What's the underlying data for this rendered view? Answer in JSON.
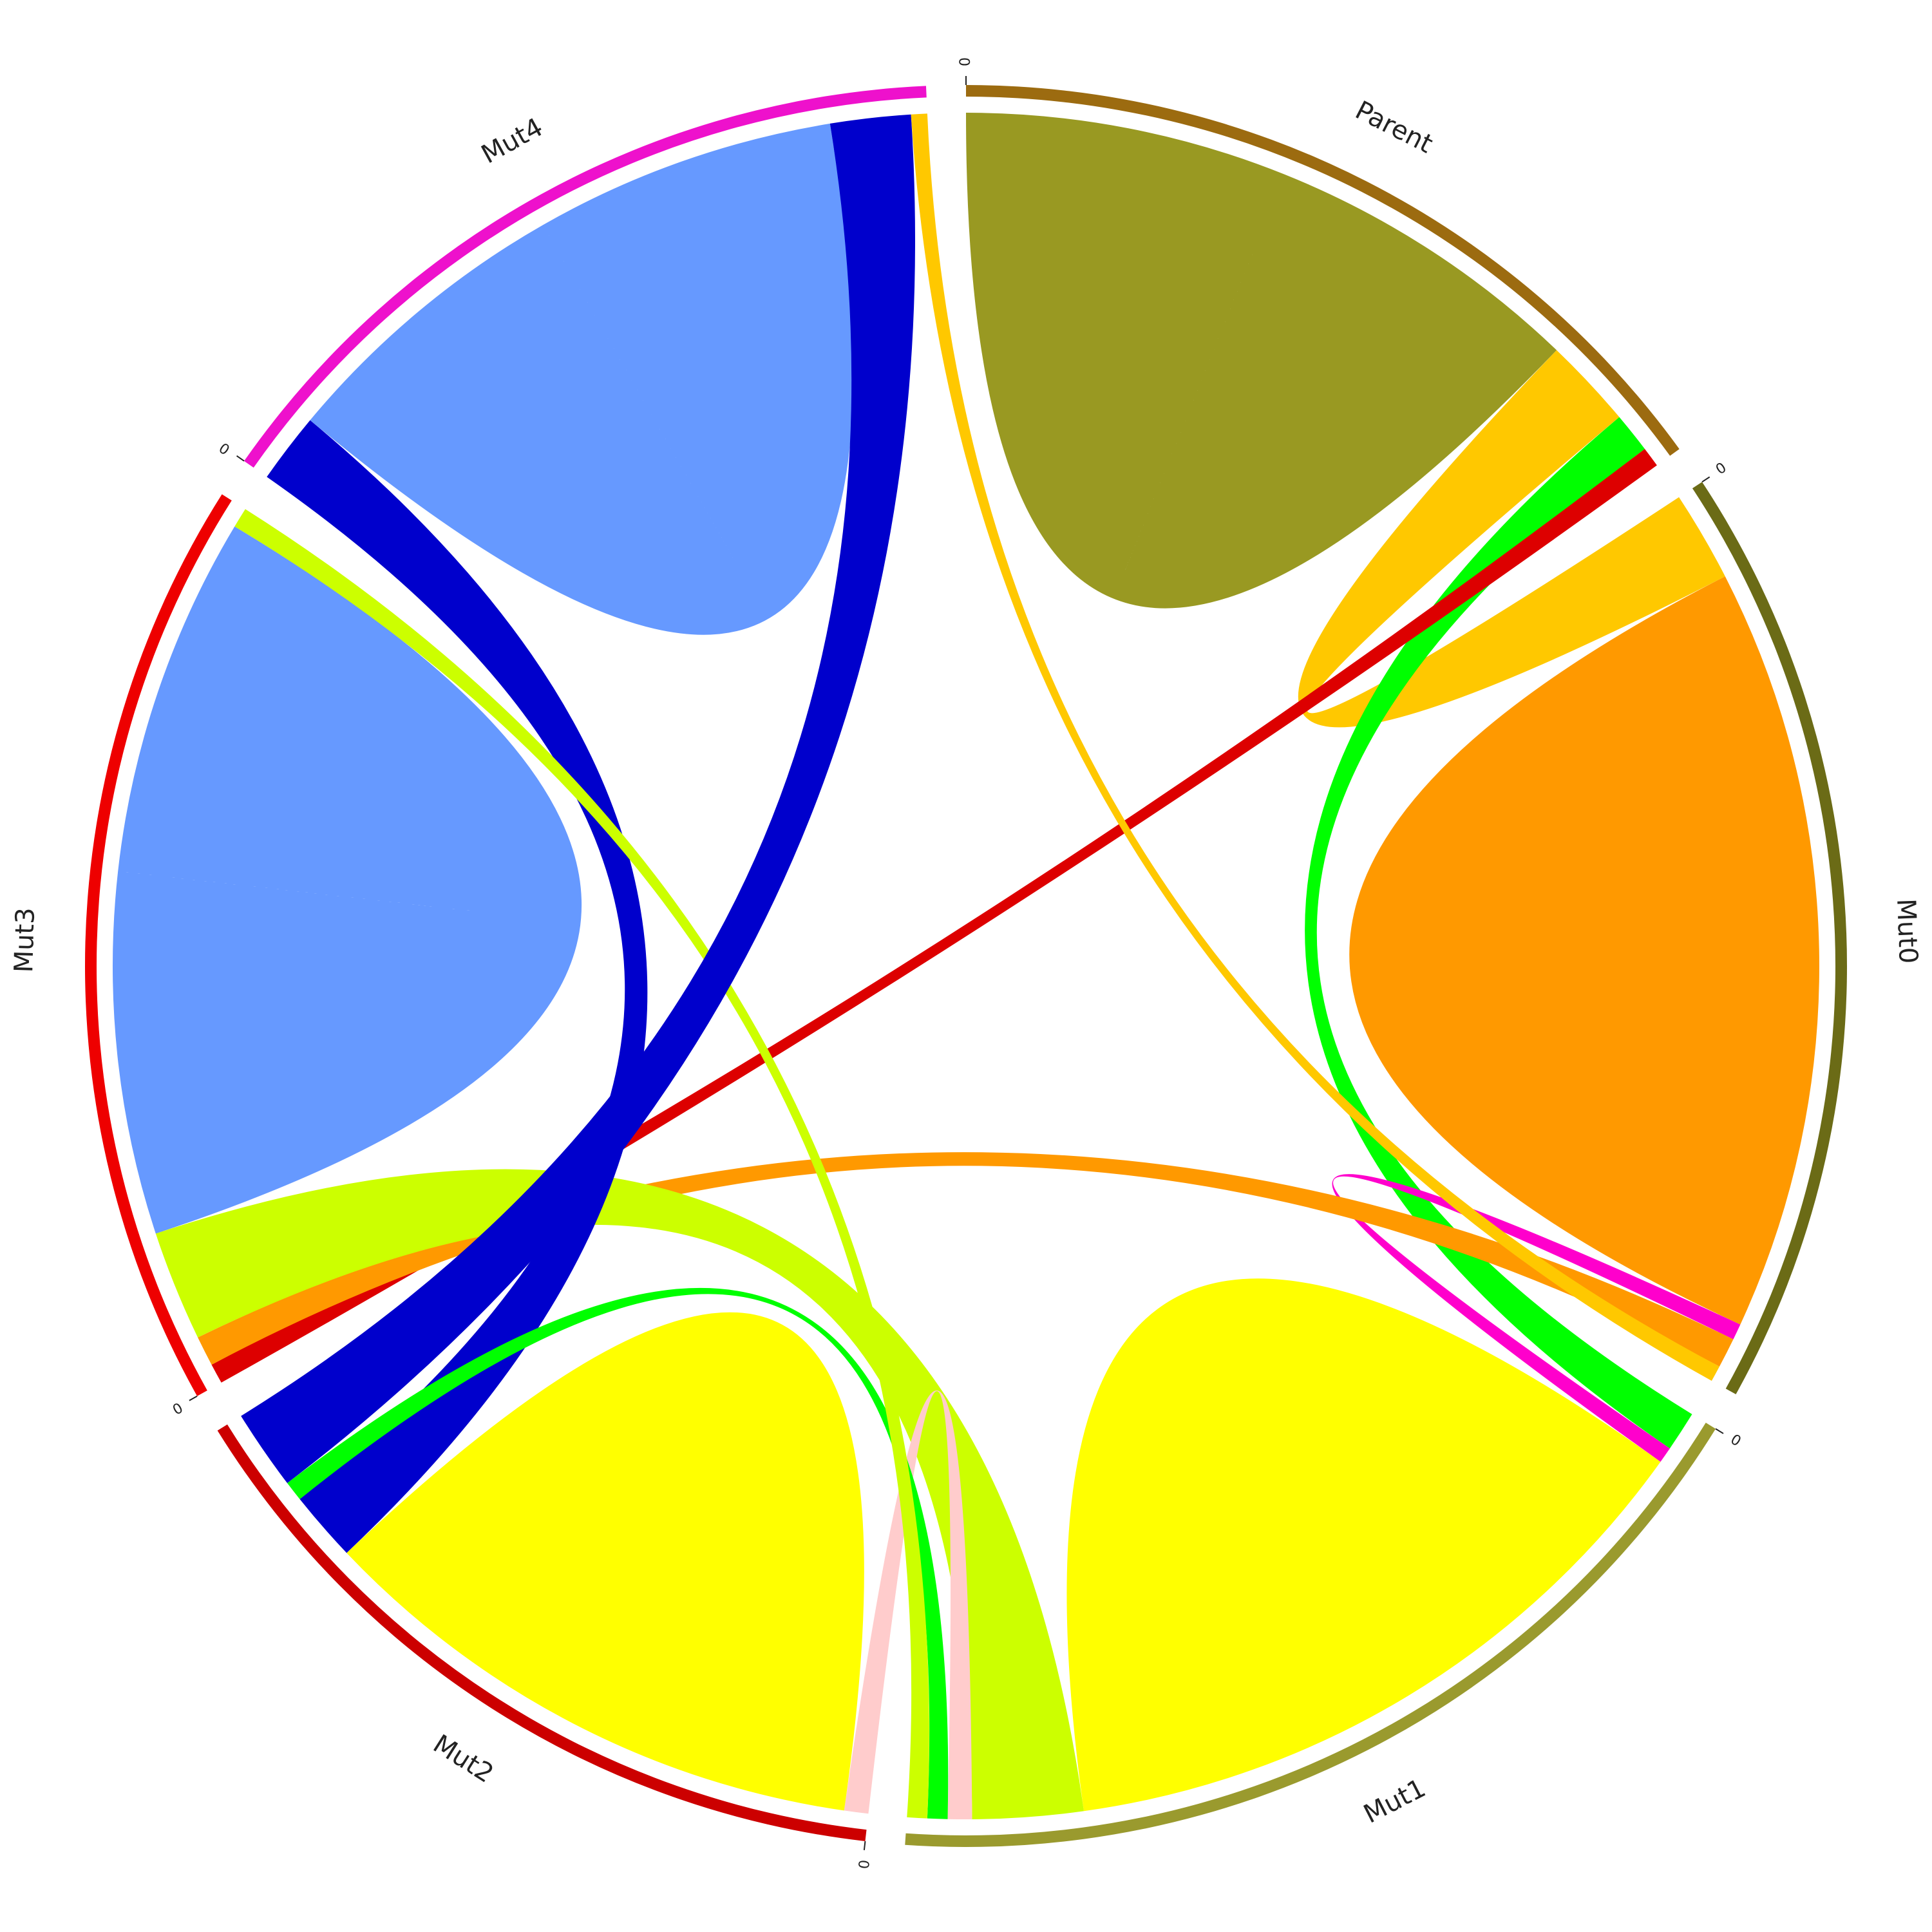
{
  "chart_data": {
    "type": "chord",
    "sectors": [
      {
        "name": "Parent",
        "color": "#9c6b10",
        "start_tick": "0"
      },
      {
        "name": "Mut0",
        "color": "#6b6b16",
        "start_tick": "0"
      },
      {
        "name": "Mut1",
        "color": "#9a9a2e",
        "start_tick": "0"
      },
      {
        "name": "Mut2",
        "color": "#cc0000",
        "start_tick": "0"
      },
      {
        "name": "Mut3",
        "color": "#ee0000",
        "start_tick": "0"
      },
      {
        "name": "Mut4",
        "color": "#ee11cc",
        "start_tick": "0"
      }
    ],
    "links": [
      {
        "from": "Parent",
        "to": "Parent",
        "value": 1.6,
        "color": "#999922"
      },
      {
        "from": "Parent",
        "to": "Mut0",
        "value": 0.45,
        "color": "#ffc800"
      },
      {
        "from": "Parent",
        "to": "Mut1",
        "value": 0.2,
        "color": "#00ff00"
      },
      {
        "from": "Parent",
        "to": "Mut3",
        "value": 0.1,
        "color": "#dd0000"
      },
      {
        "from": "Mut0",
        "to": "Mut0",
        "value": 1.9,
        "color": "#ff9900"
      },
      {
        "from": "Mut0",
        "to": "Mut1",
        "value": 0.08,
        "color": "#ff00cc"
      },
      {
        "from": "Mut0",
        "to": "Mut3",
        "value": 0.15,
        "color": "#ff9900"
      },
      {
        "from": "Mut1",
        "to": "Mut1",
        "value": 1.7,
        "color": "#ffff00"
      },
      {
        "from": "Mut1",
        "to": "Mut3",
        "value": 0.55,
        "color": "#ccff00"
      },
      {
        "from": "Mut1",
        "to": "Mut2",
        "value": 0.12,
        "color": "#ffcccc"
      },
      {
        "from": "Mut2",
        "to": "Mut2",
        "value": 1.4,
        "color": "#ffff00"
      },
      {
        "from": "Mut2",
        "to": "Mut4",
        "value": 0.35,
        "color": "#0000cc"
      },
      {
        "from": "Mut2",
        "to": "Mut1",
        "value": 0.1,
        "color": "#00ff00"
      },
      {
        "from": "Mut3",
        "to": "Mut3",
        "value": 1.8,
        "color": "#6699ff"
      },
      {
        "from": "Mut3",
        "to": "Mut1",
        "value": 0.1,
        "color": "#ccff00"
      },
      {
        "from": "Mut4",
        "to": "Mut4",
        "value": 1.5,
        "color": "#6699ff"
      },
      {
        "from": "Mut4",
        "to": "Mut2",
        "value": 0.4,
        "color": "#0000cc"
      },
      {
        "from": "Mut4",
        "to": "Mut0",
        "value": 0.08,
        "color": "#ffc800"
      }
    ],
    "legend": "none",
    "grid": false
  }
}
